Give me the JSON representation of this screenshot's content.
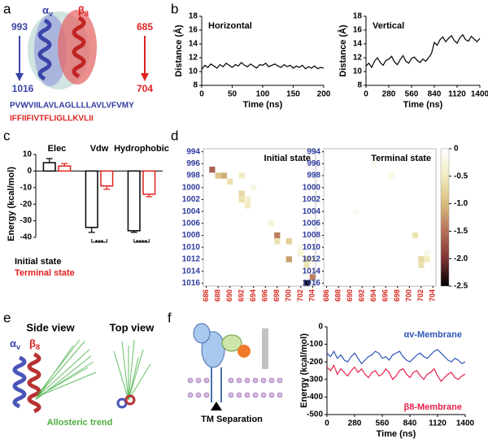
{
  "panels": [
    "a",
    "b",
    "c",
    "d",
    "e",
    "f"
  ],
  "panel_a": {
    "alpha": {
      "symbol": "α",
      "sub": "v"
    },
    "beta": {
      "symbol": "β",
      "sub": "8"
    },
    "alpha_start": "993",
    "alpha_end": "1016",
    "beta_start": "685",
    "beta_end": "704",
    "alpha_sequence": "PVWVIILAVLAGLLLLAVLVFVMY",
    "beta_sequence": "IFFIIFIVTFLIGLLKVLII"
  },
  "panel_e": {
    "side_view": "Side view",
    "top_view": "Top view",
    "alpha": {
      "symbol": "α",
      "sub": "v"
    },
    "beta": {
      "symbol": "β",
      "sub": "8"
    },
    "trend": "Allosteric trend"
  },
  "panel_f": {
    "label": "TM Separation"
  },
  "chart_data": [
    {
      "type": "line",
      "title": "Horizontal",
      "xlabel": "Time (ns)",
      "ylabel": "Distance (Å)",
      "color": "#000000",
      "x": [
        0,
        5,
        10,
        15,
        20,
        25,
        30,
        35,
        40,
        45,
        50,
        55,
        60,
        65,
        70,
        75,
        80,
        85,
        90,
        95,
        100,
        105,
        110,
        115,
        120,
        125,
        130,
        135,
        140,
        145,
        150,
        155,
        160,
        165,
        170,
        175,
        180,
        185,
        190,
        195,
        200
      ],
      "values": [
        10.3,
        10.9,
        10.6,
        11.1,
        10.8,
        10.5,
        11.0,
        10.7,
        11.2,
        10.9,
        10.6,
        11.0,
        10.8,
        11.3,
        10.9,
        10.7,
        11.1,
        10.8,
        10.5,
        11.0,
        10.9,
        11.2,
        10.7,
        10.9,
        11.1,
        10.8,
        10.6,
        11.0,
        10.7,
        10.9,
        10.5,
        10.8,
        10.6,
        10.9,
        10.4,
        10.7,
        10.5,
        10.8,
        10.4,
        10.6,
        10.5
      ],
      "xlim": [
        0,
        200
      ],
      "xticks": [
        0,
        50,
        100,
        150,
        200
      ],
      "ylim": [
        8,
        18
      ],
      "yticks": [
        8,
        10,
        12,
        14,
        16,
        18
      ]
    },
    {
      "type": "line",
      "title": "Vertical",
      "xlabel": "Time (ns)",
      "ylabel": "Distance (Å)",
      "color": "#000000",
      "x": [
        0,
        35,
        70,
        105,
        140,
        175,
        210,
        245,
        280,
        315,
        350,
        385,
        420,
        455,
        490,
        525,
        560,
        595,
        630,
        665,
        700,
        735,
        770,
        805,
        840,
        875,
        910,
        945,
        980,
        1015,
        1050,
        1085,
        1120,
        1155,
        1190,
        1225,
        1260,
        1295,
        1330,
        1365,
        1400
      ],
      "values": [
        10.8,
        11.2,
        10.6,
        11.5,
        12.0,
        11.3,
        10.9,
        11.6,
        11.8,
        12.2,
        11.4,
        11.0,
        11.7,
        12.3,
        11.5,
        11.2,
        11.9,
        12.1,
        11.6,
        11.3,
        11.8,
        11.5,
        12.0,
        12.6,
        14.2,
        13.8,
        14.6,
        15.0,
        14.3,
        14.8,
        15.2,
        14.5,
        14.1,
        14.9,
        15.3,
        14.6,
        14.4,
        15.1,
        14.7,
        14.3,
        14.8
      ],
      "xlim": [
        0,
        1400
      ],
      "xticks": [
        0,
        280,
        560,
        840,
        1120,
        1400
      ],
      "ylim": [
        8,
        18
      ],
      "yticks": [
        8,
        10,
        12,
        14,
        16,
        18
      ]
    },
    {
      "type": "bar",
      "ylabel": "Energy (kcal/mol)",
      "categories": [
        "Elec",
        "Vdw",
        "Hydrophobic"
      ],
      "series": [
        {
          "name": "Initial state",
          "color": "#000000",
          "values": [
            5,
            -34,
            -36
          ],
          "errors": [
            2.5,
            3,
            1
          ]
        },
        {
          "name": "Terminal state",
          "color": "#e0201b",
          "values": [
            3,
            -9,
            -14
          ],
          "errors": [
            1.5,
            2,
            1.5
          ]
        }
      ],
      "annotations": [
        "***",
        "****"
      ],
      "ylim": [
        -40,
        10
      ],
      "yticks": [
        -40,
        -30,
        -20,
        -10,
        0,
        10
      ]
    },
    {
      "type": "heatmap",
      "title": "Initial state",
      "xtick_color": "#d9261c",
      "ytick_color": "#2e3b9e",
      "xlim": [
        685.5,
        704.5
      ],
      "ylim": [
        993.5,
        1016.5
      ],
      "xticks": [
        686,
        688,
        690,
        692,
        694,
        696,
        698,
        700,
        702,
        704
      ],
      "yticks": [
        994,
        996,
        998,
        1000,
        1002,
        1004,
        1006,
        1008,
        1010,
        1012,
        1014,
        1016
      ],
      "cells": [
        {
          "x": 687,
          "y": 997,
          "value": -1.6
        },
        {
          "x": 688,
          "y": 998,
          "value": -0.9
        },
        {
          "x": 689,
          "y": 998,
          "value": -1.1
        },
        {
          "x": 690,
          "y": 999,
          "value": -0.6
        },
        {
          "x": 692,
          "y": 998,
          "value": -0.5
        },
        {
          "x": 692,
          "y": 1001,
          "value": -0.7
        },
        {
          "x": 692,
          "y": 1002,
          "value": -0.6
        },
        {
          "x": 693,
          "y": 1002,
          "value": -0.4
        },
        {
          "x": 693,
          "y": 1003,
          "value": -0.5
        },
        {
          "x": 694,
          "y": 1000,
          "value": -0.2
        },
        {
          "x": 697,
          "y": 1006,
          "value": -0.3
        },
        {
          "x": 698,
          "y": 1008,
          "value": -1.4
        },
        {
          "x": 698,
          "y": 1009,
          "value": -0.6
        },
        {
          "x": 700,
          "y": 1009,
          "value": -0.8
        },
        {
          "x": 700,
          "y": 1012,
          "value": -1.2
        },
        {
          "x": 702,
          "y": 1010,
          "value": -0.2
        },
        {
          "x": 703,
          "y": 1012,
          "value": -0.7
        },
        {
          "x": 704,
          "y": 1012,
          "value": -0.5
        },
        {
          "x": 703,
          "y": 1013,
          "value": -0.6
        },
        {
          "x": 704,
          "y": 1015,
          "value": -1.4
        },
        {
          "x": 703,
          "y": 1016,
          "value": -2.5
        },
        {
          "x": 702,
          "y": 1011,
          "value": -0.3
        }
      ]
    },
    {
      "type": "heatmap",
      "title": "Terminal state",
      "xtick_color": "#d9261c",
      "ytick_color": "#2e3b9e",
      "xlim": [
        685.5,
        704.5
      ],
      "ylim": [
        993.5,
        1016.5
      ],
      "xticks": [
        686,
        688,
        690,
        692,
        694,
        696,
        698,
        700,
        702,
        704
      ],
      "yticks": [
        994,
        996,
        998,
        1000,
        1002,
        1004,
        1006,
        1008,
        1010,
        1012,
        1014,
        1016
      ],
      "cells": [
        {
          "x": 694,
          "y": 996,
          "value": -0.1
        },
        {
          "x": 697,
          "y": 998,
          "value": -0.2
        },
        {
          "x": 701,
          "y": 1008,
          "value": -0.6
        },
        {
          "x": 702,
          "y": 1012,
          "value": -0.7
        },
        {
          "x": 703,
          "y": 1012,
          "value": -0.5
        },
        {
          "x": 702,
          "y": 1013,
          "value": -0.6
        },
        {
          "x": 703,
          "y": 1011,
          "value": -0.2
        },
        {
          "x": 691,
          "y": 1004,
          "value": -0.1
        }
      ],
      "colorbar": {
        "lim": [
          -2.5,
          0
        ],
        "ticks": [
          0,
          -0.5,
          {
            "value": -1,
            "label": "-1.0"
          },
          -1.5,
          {
            "value": -2,
            "label": "-2.0"
          },
          -2.5
        ],
        "colors": [
          "#ffffff",
          "#f1ecc0",
          "#d8bd7c",
          "#b5705a",
          "#7d3232",
          "#000000"
        ]
      }
    },
    {
      "type": "line",
      "xlabel": "Time (ns)",
      "ylabel": "Energy (kcal/mol)",
      "x": [
        0,
        35,
        70,
        105,
        140,
        175,
        210,
        245,
        280,
        315,
        350,
        385,
        420,
        455,
        490,
        525,
        560,
        595,
        630,
        665,
        700,
        735,
        770,
        805,
        840,
        875,
        910,
        945,
        980,
        1015,
        1050,
        1085,
        1120,
        1155,
        1190,
        1225,
        1260,
        1295,
        1330,
        1365,
        1400
      ],
      "series": [
        {
          "name": "αv-Membrane",
          "color": "#2d55b8",
          "values": [
            -150,
            -170,
            -140,
            -180,
            -160,
            -190,
            -200,
            -170,
            -150,
            -180,
            -210,
            -190,
            -170,
            -160,
            -140,
            -150,
            -180,
            -170,
            -190,
            -160,
            -150,
            -140,
            -170,
            -190,
            -200,
            -180,
            -160,
            -150,
            -170,
            -180,
            -160,
            -140,
            -130,
            -150,
            -170,
            -190,
            -200,
            -180,
            -190,
            -210,
            -200
          ]
        },
        {
          "name": "β8-Membrane",
          "color": "#e8204a",
          "values": [
            -230,
            -250,
            -220,
            -270,
            -240,
            -260,
            -280,
            -250,
            -230,
            -260,
            -240,
            -270,
            -290,
            -260,
            -250,
            -280,
            -270,
            -240,
            -260,
            -300,
            -280,
            -250,
            -240,
            -270,
            -290,
            -260,
            -250,
            -280,
            -300,
            -270,
            -260,
            -240,
            -280,
            -310,
            -290,
            -270,
            -260,
            -290,
            -300,
            -280,
            -270
          ]
        }
      ],
      "xlim": [
        0,
        1400
      ],
      "xticks": [
        0,
        280,
        560,
        840,
        1120,
        1400
      ],
      "ylim": [
        -500,
        0
      ],
      "yticks": [
        -500,
        -400,
        -300,
        -200,
        -100,
        0
      ]
    }
  ]
}
